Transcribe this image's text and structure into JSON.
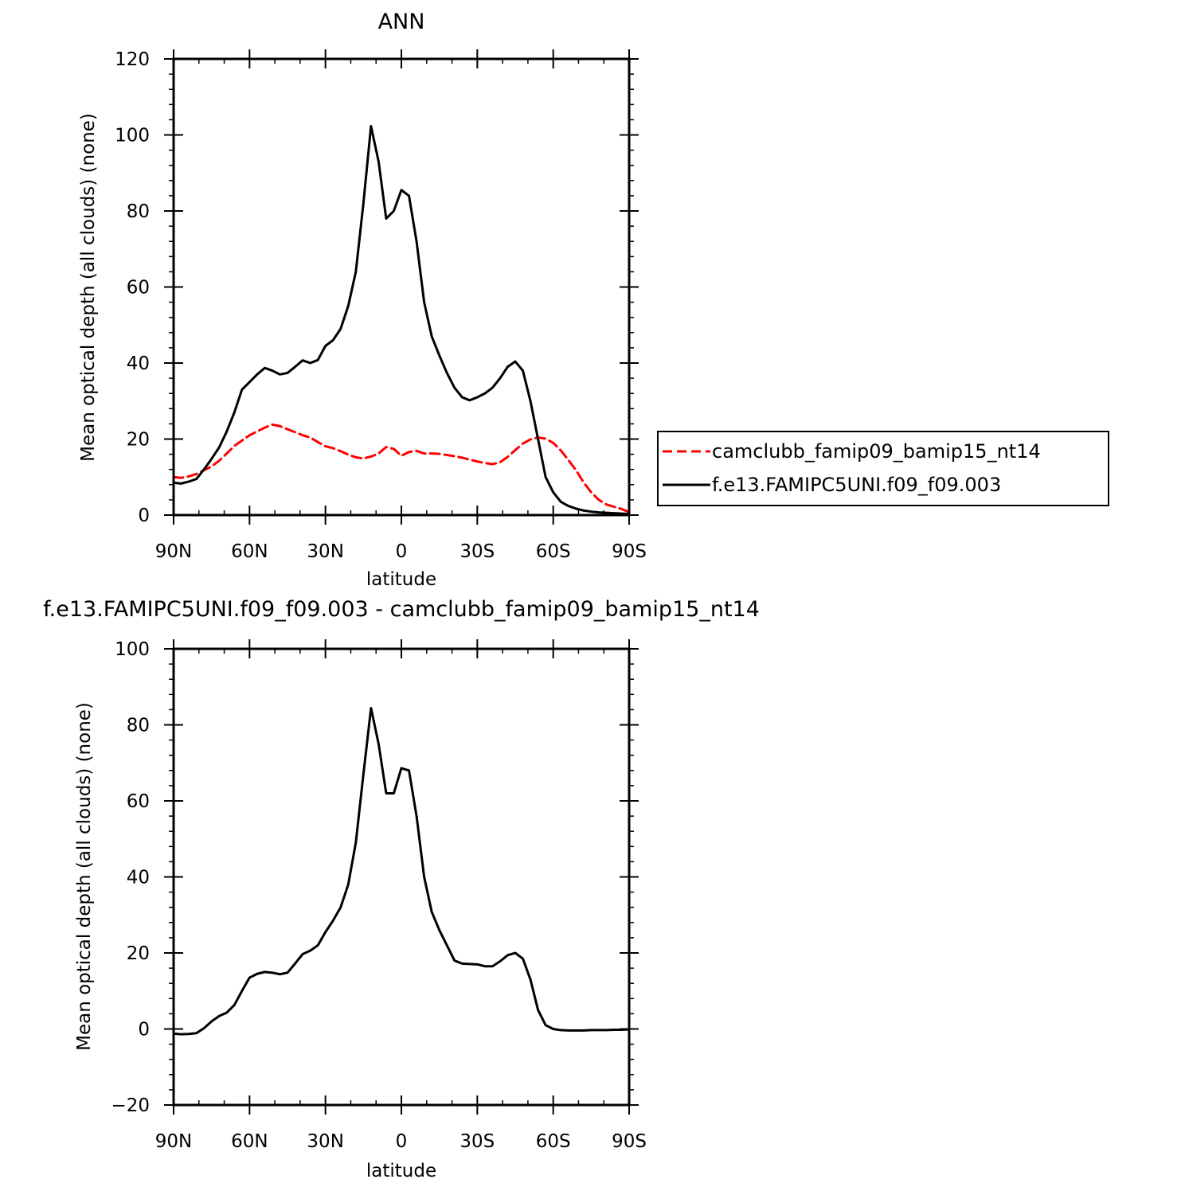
{
  "chart_data": [
    {
      "type": "line",
      "title": "ANN",
      "xlabel": "latitude",
      "ylabel": "Mean optical depth (all clouds) (none)",
      "xlim": [
        90,
        -90
      ],
      "ylim": [
        0,
        120
      ],
      "x_tick_values": [
        90,
        60,
        30,
        0,
        -30,
        -60,
        -90
      ],
      "x_tick_labels": [
        "90N",
        "60N",
        "30N",
        "0",
        "30S",
        "60S",
        "90S"
      ],
      "y_ticks": [
        0,
        20,
        40,
        60,
        80,
        100,
        120
      ],
      "grid": false,
      "legend_position": "right",
      "series": [
        {
          "name": "camclubb_famip09_bamip15_nt14",
          "color": "#ff0000",
          "dash": "dashed",
          "x": [
            90,
            87,
            84,
            81,
            78,
            75,
            72,
            69,
            66,
            63,
            60,
            57,
            54,
            51,
            48,
            45,
            42,
            39,
            36,
            33,
            30,
            27,
            24,
            21,
            18,
            15,
            12,
            9,
            6,
            3,
            0,
            -3,
            -6,
            -9,
            -12,
            -15,
            -18,
            -21,
            -24,
            -27,
            -30,
            -33,
            -36,
            -39,
            -42,
            -45,
            -48,
            -51,
            -54,
            -57,
            -60,
            -63,
            -66,
            -69,
            -72,
            -75,
            -78,
            -81,
            -84,
            -87,
            -90
          ],
          "y": [
            10,
            9.8,
            10.2,
            10.8,
            11.8,
            12.8,
            14.3,
            16.2,
            18.2,
            19.6,
            21,
            22,
            23,
            23.8,
            23.4,
            22.6,
            21.8,
            21,
            20.4,
            19.2,
            18.1,
            17.6,
            16.8,
            15.9,
            15.2,
            14.9,
            15.4,
            16.2,
            17.9,
            17.4,
            15.6,
            16.6,
            16.9,
            16.2,
            16.2,
            16.1,
            15.8,
            15.5,
            15.1,
            14.6,
            14.1,
            13.7,
            13.4,
            13.9,
            15.3,
            17.1,
            18.8,
            19.9,
            20.4,
            20.1,
            19,
            17,
            14.5,
            11.8,
            8.6,
            6,
            4,
            2.8,
            2.2,
            1.6,
            0.8
          ]
        },
        {
          "name": "f.e13.FAMIPC5UNI.f09_f09.003",
          "color": "#000000",
          "dash": "solid",
          "x": [
            90,
            87,
            84,
            81,
            78,
            75,
            72,
            69,
            66,
            63,
            60,
            57,
            54,
            51,
            48,
            45,
            42,
            39,
            36,
            33,
            30,
            27,
            24,
            21,
            18,
            15,
            12,
            9,
            6,
            3,
            0,
            -3,
            -6,
            -9,
            -12,
            -15,
            -18,
            -21,
            -24,
            -27,
            -30,
            -33,
            -36,
            -39,
            -42,
            -45,
            -48,
            -51,
            -54,
            -57,
            -60,
            -63,
            -66,
            -69,
            -72,
            -75,
            -78,
            -81,
            -84,
            -87,
            -90
          ],
          "y": [
            8.5,
            8.3,
            8.8,
            9.5,
            12,
            14.8,
            17.8,
            22,
            27,
            33,
            35,
            37,
            38.7,
            38,
            37,
            37.4,
            39,
            40.7,
            40,
            40.8,
            44.5,
            46,
            49,
            55,
            64,
            82,
            102.3,
            93,
            78,
            80,
            85.5,
            84,
            72,
            56,
            47,
            42,
            37.4,
            33.5,
            31,
            30.2,
            31,
            32,
            33.5,
            36,
            39,
            40.4,
            38,
            30,
            20,
            10,
            6,
            3.5,
            2.4,
            1.7,
            1.2,
            0.9,
            0.7,
            0.6,
            0.5,
            0.4,
            0.3
          ]
        }
      ]
    },
    {
      "type": "line",
      "title": "f.e13.FAMIPC5UNI.f09_f09.003 - camclubb_famip09_bamip15_nt14",
      "xlabel": "latitude",
      "ylabel": "Mean optical depth (all clouds) (none)",
      "xlim": [
        90,
        -90
      ],
      "ylim": [
        -20,
        100
      ],
      "x_tick_values": [
        90,
        60,
        30,
        0,
        -30,
        -60,
        -90
      ],
      "x_tick_labels": [
        "90N",
        "60N",
        "30N",
        "0",
        "30S",
        "60S",
        "90S"
      ],
      "y_ticks": [
        -20,
        0,
        20,
        40,
        60,
        80,
        100
      ],
      "grid": false,
      "series": [
        {
          "color": "#000000",
          "dash": "solid",
          "x": [
            90,
            87,
            84,
            81,
            78,
            75,
            72,
            69,
            66,
            63,
            60,
            57,
            54,
            51,
            48,
            45,
            42,
            39,
            36,
            33,
            30,
            27,
            24,
            21,
            18,
            15,
            12,
            9,
            6,
            3,
            0,
            -3,
            -6,
            -9,
            -12,
            -15,
            -18,
            -21,
            -24,
            -27,
            -30,
            -33,
            -36,
            -39,
            -42,
            -45,
            -48,
            -51,
            -54,
            -57,
            -60,
            -63,
            -66,
            -69,
            -72,
            -75,
            -78,
            -81,
            -84,
            -87,
            -90
          ],
          "y": [
            -1.2,
            -1.4,
            -1.3,
            -1.1,
            0.2,
            2,
            3.4,
            4.3,
            6.3,
            10,
            13.5,
            14.5,
            15,
            14.8,
            14.4,
            14.8,
            17.2,
            19.7,
            20.6,
            22,
            25.5,
            28.5,
            32,
            38,
            49,
            67,
            84.4,
            75,
            62,
            62,
            68.6,
            68,
            56,
            40,
            30.8,
            26,
            22,
            18,
            17.2,
            17.1,
            17,
            16.5,
            16.5,
            17.8,
            19.4,
            20,
            18.5,
            13,
            5,
            1,
            0,
            -0.3,
            -0.4,
            -0.4,
            -0.4,
            -0.3,
            -0.3,
            -0.3,
            -0.2,
            -0.2,
            -0.1
          ]
        }
      ]
    }
  ]
}
